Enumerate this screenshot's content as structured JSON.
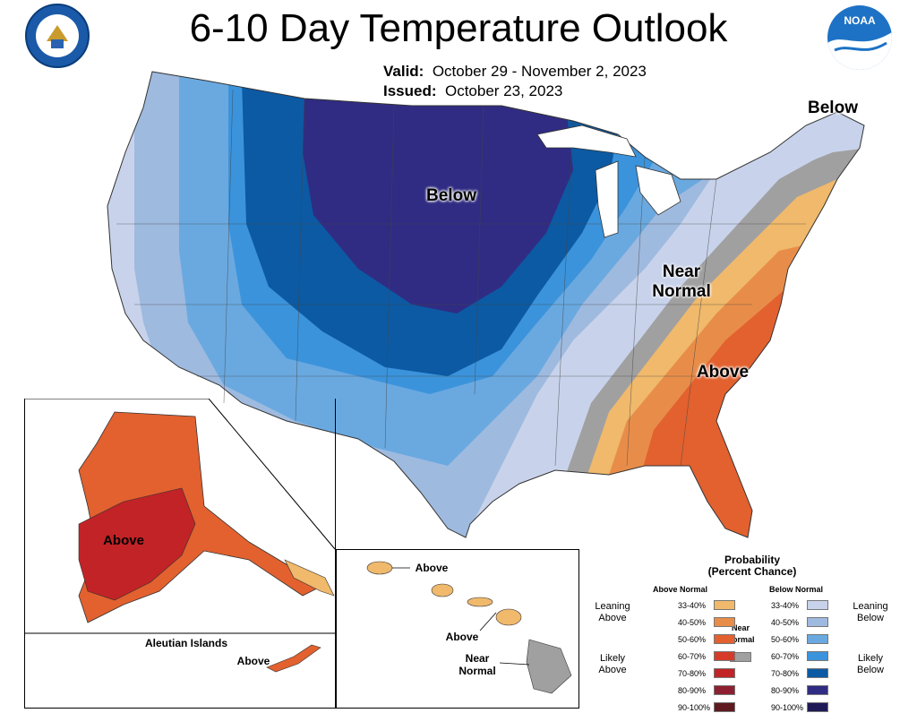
{
  "title": "6-10 Day Temperature Outlook",
  "valid": {
    "label": "Valid:",
    "value": "October 29 - November 2, 2023"
  },
  "issued": {
    "label": "Issued:",
    "value": "October 23, 2023"
  },
  "logos": {
    "left": "doc-seal",
    "right": "noaa-logo",
    "noaa_text": "NOAA"
  },
  "regions": {
    "below_central": "Below",
    "below_northeast": "Below",
    "near_normal": "Near\nNormal",
    "above_southeast": "Above",
    "alaska_above": "Above",
    "aleutian_title": "Aleutian Islands",
    "aleutian_above": "Above",
    "hawaii_above_1": "Above",
    "hawaii_above_2": "Above",
    "hawaii_near": "Near\nNormal"
  },
  "legend": {
    "title": "Probability\n(Percent Chance)",
    "above_header": "Above Normal",
    "below_header": "Below Normal",
    "near_label": "Near\nNormal",
    "near_color": "#a0a0a0",
    "leaning_above": "Leaning\nAbove",
    "likely_above": "Likely\nAbove",
    "leaning_below": "Leaning\nBelow",
    "likely_below": "Likely\nBelow",
    "above": [
      {
        "range": "33-40%",
        "color": "#f0b96b"
      },
      {
        "range": "40-50%",
        "color": "#e88d49"
      },
      {
        "range": "50-60%",
        "color": "#e2612f"
      },
      {
        "range": "60-70%",
        "color": "#d63a28"
      },
      {
        "range": "70-80%",
        "color": "#c22326"
      },
      {
        "range": "80-90%",
        "color": "#8d2030"
      },
      {
        "range": "90-100%",
        "color": "#5e1a1e"
      }
    ],
    "below": [
      {
        "range": "33-40%",
        "color": "#c8d3eb"
      },
      {
        "range": "40-50%",
        "color": "#9fbadf"
      },
      {
        "range": "50-60%",
        "color": "#6aa9e0"
      },
      {
        "range": "60-70%",
        "color": "#3b93db"
      },
      {
        "range": "70-80%",
        "color": "#0c5aa3"
      },
      {
        "range": "80-90%",
        "color": "#302c83"
      },
      {
        "range": "90-100%",
        "color": "#1f1a56"
      }
    ]
  }
}
